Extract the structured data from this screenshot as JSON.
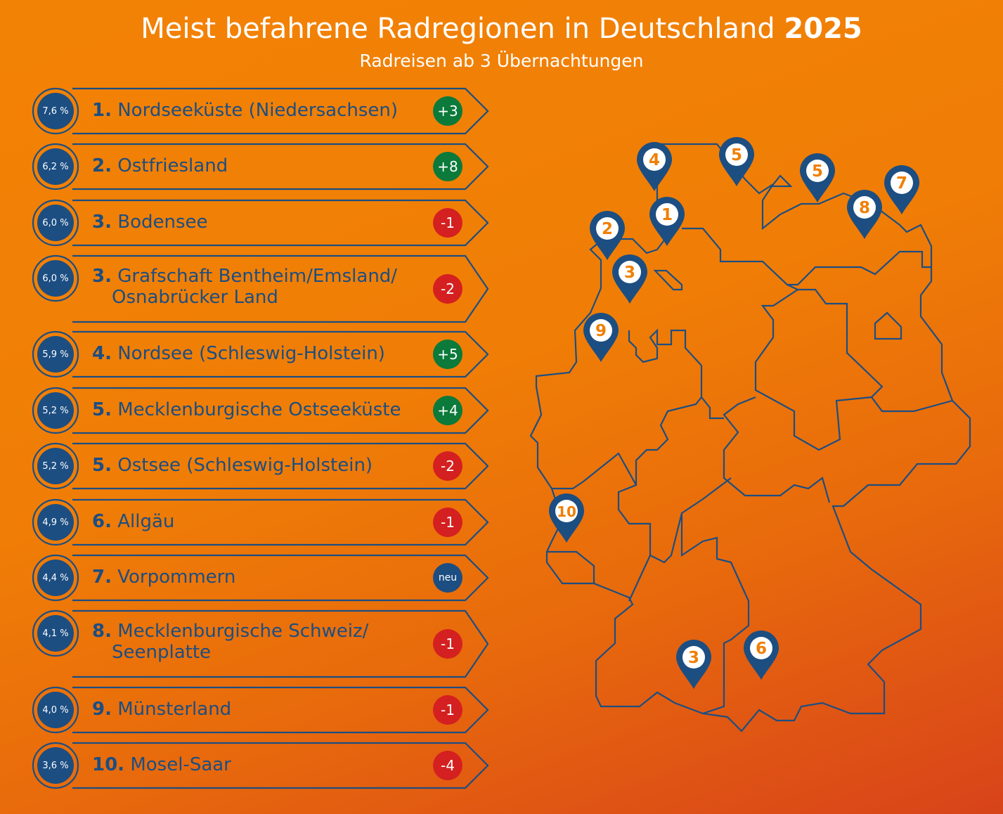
{
  "title": {
    "main": "Meist befahrene Radregionen in Deutschland",
    "year": "2025"
  },
  "subtitle": "Radreisen ab 3 Übernachtungen",
  "colors": {
    "navy": "#1C4E82",
    "orange": "#F07F05",
    "up": "#0B7A3A",
    "down": "#D42020",
    "new": "#1C4E82"
  },
  "ranking": [
    {
      "share": "7,6 %",
      "rank": "1.",
      "name": "Nordseeküste (Niedersachsen)",
      "name2": "",
      "change": "+3",
      "trend": "up"
    },
    {
      "share": "6,2 %",
      "rank": "2.",
      "name": "Ostfriesland",
      "name2": "",
      "change": "+8",
      "trend": "up"
    },
    {
      "share": "6,0 %",
      "rank": "3.",
      "name": "Bodensee",
      "name2": "",
      "change": "-1",
      "trend": "down"
    },
    {
      "share": "6,0 %",
      "rank": "3.",
      "name": "Grafschaft Bentheim/Emsland/",
      "name2": "Osnabrücker Land",
      "change": "-2",
      "trend": "down"
    },
    {
      "share": "5,9 %",
      "rank": "4.",
      "name": "Nordsee (Schleswig-Holstein)",
      "name2": "",
      "change": "+5",
      "trend": "up"
    },
    {
      "share": "5,2 %",
      "rank": "5.",
      "name": "Mecklenburgische Ostseeküste",
      "name2": "",
      "change": "+4",
      "trend": "up"
    },
    {
      "share": "5,2 %",
      "rank": "5.",
      "name": "Ostsee (Schleswig-Holstein)",
      "name2": "",
      "change": "-2",
      "trend": "down"
    },
    {
      "share": "4,9 %",
      "rank": "6.",
      "name": "Allgäu",
      "name2": "",
      "change": "-1",
      "trend": "down"
    },
    {
      "share": "4,4 %",
      "rank": "7.",
      "name": "Vorpommern",
      "name2": "",
      "change": "neu",
      "trend": "new"
    },
    {
      "share": "4,1 %",
      "rank": "8.",
      "name": "Mecklenburgische Schweiz/",
      "name2": "Seenplatte",
      "change": "-1",
      "trend": "down"
    },
    {
      "share": "4,0 %",
      "rank": "9.",
      "name": "Münsterland",
      "name2": "",
      "change": "-1",
      "trend": "down"
    },
    {
      "share": "3,6 %",
      "rank": "10.",
      "name": "Mosel-Saar",
      "name2": "",
      "change": "-4",
      "trend": "down"
    }
  ],
  "map_pins": [
    "4",
    "5",
    "5",
    "7",
    "8",
    "1",
    "2",
    "3",
    "9",
    "10",
    "3",
    "6"
  ]
}
